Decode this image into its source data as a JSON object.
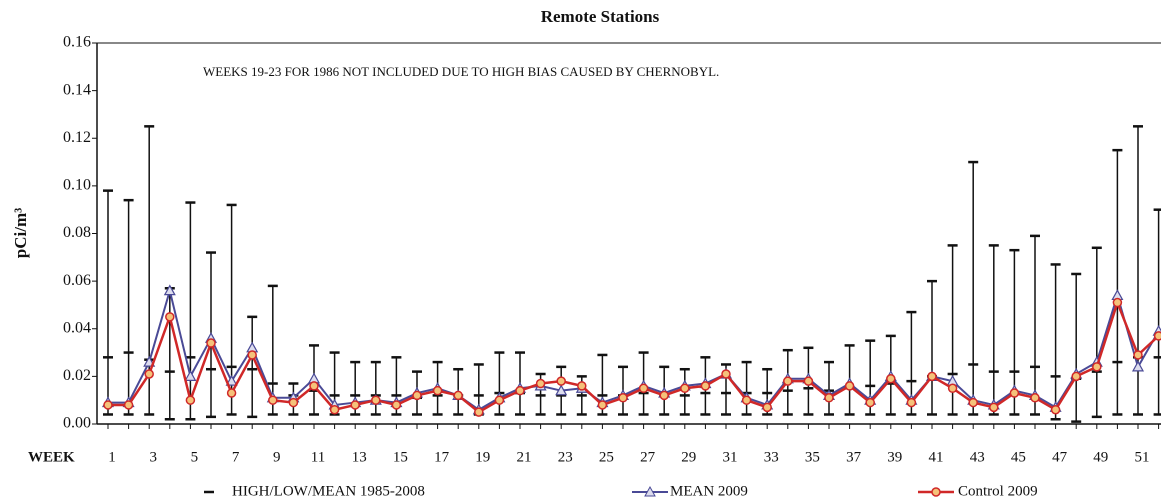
{
  "chart_data": {
    "type": "line",
    "title": "Remote Stations",
    "annotation": "WEEKS 19-23 FOR 1986 NOT INCLUDED DUE TO HIGH BIAS CAUSED BY CHERNOBYL.",
    "y_label": "pCi/m³",
    "x_label": "WEEK",
    "categories": [
      "1",
      null,
      "3",
      null,
      "5",
      null,
      "7",
      null,
      "9",
      null,
      "11",
      null,
      "13",
      null,
      "15",
      null,
      "17",
      null,
      "19",
      null,
      "21",
      null,
      "23",
      null,
      "25",
      null,
      "27",
      null,
      "29",
      null,
      "31",
      null,
      "33",
      null,
      "35",
      null,
      "37",
      null,
      "39",
      null,
      "41",
      null,
      "43",
      null,
      "45",
      null,
      "47",
      null,
      "49",
      null,
      "51",
      null
    ],
    "ylim": [
      0,
      0.16
    ],
    "yticks": [
      {
        "value": 0,
        "label": "0.00"
      },
      {
        "value": 0.02,
        "label": "0.02"
      },
      {
        "value": 0.04,
        "label": "0.04"
      },
      {
        "value": 0.06,
        "label": "0.06"
      },
      {
        "value": 0.08,
        "label": "0.08"
      },
      {
        "value": 0.1,
        "label": "0.10"
      },
      {
        "value": 0.12,
        "label": "0.12"
      },
      {
        "value": 0.14,
        "label": "0.14"
      },
      {
        "value": 0.16,
        "label": "0.16"
      }
    ],
    "series": [
      {
        "name": "HIGH/LOW/MEAN 1985-2008",
        "color": "#111111",
        "high": [
          0.098,
          0.094,
          0.125,
          0.057,
          0.093,
          0.072,
          0.092,
          0.045,
          0.058,
          0.017,
          0.033,
          0.03,
          0.026,
          0.026,
          0.028,
          0.022,
          0.026,
          0.023,
          0.025,
          0.03,
          0.03,
          0.021,
          0.024,
          0.02,
          0.029,
          0.024,
          0.03,
          0.024,
          0.023,
          0.028,
          0.025,
          0.026,
          0.023,
          0.031,
          0.032,
          0.026,
          0.033,
          0.035,
          0.037,
          0.047,
          0.06,
          0.075,
          0.11,
          0.075,
          0.073,
          0.079,
          0.067,
          0.063,
          0.074,
          0.115,
          0.125,
          0.09
        ],
        "low": [
          0.004,
          0.004,
          0.004,
          0.002,
          0.002,
          0.003,
          0.004,
          0.003,
          0.004,
          0.004,
          0.004,
          0.004,
          0.004,
          0.004,
          0.004,
          0.004,
          0.004,
          0.004,
          0.004,
          0.004,
          0.004,
          0.004,
          0.004,
          0.004,
          0.004,
          0.004,
          0.004,
          0.004,
          0.004,
          0.004,
          0.004,
          0.004,
          0.004,
          0.004,
          0.004,
          0.004,
          0.004,
          0.004,
          0.004,
          0.004,
          0.004,
          0.004,
          0.004,
          0.004,
          0.004,
          0.004,
          0.002,
          0.001,
          0.003,
          0.004,
          0.004,
          0.004
        ],
        "mean": [
          0.028,
          0.03,
          0.027,
          0.022,
          0.028,
          0.023,
          0.024,
          0.023,
          0.017,
          0.012,
          0.014,
          0.012,
          0.012,
          0.012,
          0.012,
          0.011,
          0.012,
          0.012,
          0.012,
          0.013,
          0.013,
          0.012,
          0.012,
          0.012,
          0.012,
          0.012,
          0.013,
          0.012,
          0.012,
          0.013,
          0.013,
          0.013,
          0.013,
          0.014,
          0.015,
          0.014,
          0.015,
          0.016,
          0.017,
          0.018,
          0.02,
          0.021,
          0.025,
          0.022,
          0.022,
          0.024,
          0.02,
          0.019,
          0.022,
          0.026,
          0.028,
          0.028
        ]
      },
      {
        "name": "MEAN 2009",
        "color": "#4a4a96",
        "values": [
          0.009,
          0.009,
          0.026,
          0.056,
          0.02,
          0.036,
          0.018,
          0.032,
          0.011,
          0.011,
          0.019,
          0.008,
          0.009,
          0.01,
          0.009,
          0.013,
          0.015,
          0.012,
          0.006,
          0.011,
          0.015,
          0.016,
          0.014,
          0.015,
          0.009,
          0.012,
          0.016,
          0.013,
          0.016,
          0.017,
          0.021,
          0.011,
          0.008,
          0.019,
          0.019,
          0.012,
          0.017,
          0.01,
          0.02,
          0.01,
          0.02,
          0.018,
          0.01,
          0.008,
          0.014,
          0.012,
          0.007,
          0.021,
          0.026,
          0.054,
          0.024,
          0.039
        ]
      },
      {
        "name": "Control 2009",
        "color": "#d02828",
        "values": [
          0.008,
          0.008,
          0.021,
          0.045,
          0.01,
          0.034,
          0.013,
          0.029,
          0.01,
          0.009,
          0.016,
          0.006,
          0.008,
          0.01,
          0.008,
          0.012,
          0.014,
          0.012,
          0.005,
          0.01,
          0.014,
          0.017,
          0.018,
          0.016,
          0.008,
          0.011,
          0.015,
          0.012,
          0.015,
          0.016,
          0.021,
          0.01,
          0.007,
          0.018,
          0.018,
          0.011,
          0.016,
          0.009,
          0.019,
          0.009,
          0.02,
          0.015,
          0.009,
          0.007,
          0.013,
          0.011,
          0.006,
          0.02,
          0.024,
          0.051,
          0.029,
          0.037
        ]
      }
    ]
  }
}
